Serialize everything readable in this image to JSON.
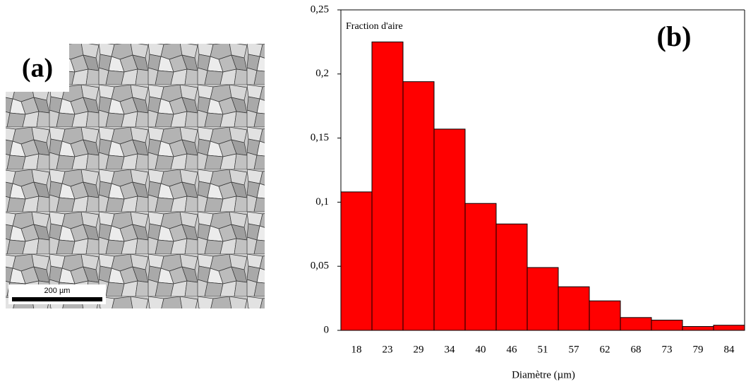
{
  "panel_a": {
    "label": "(a)",
    "scale_bar": "200 µm"
  },
  "chart_data": {
    "type": "bar",
    "panel_label": "(b)",
    "y_label": "Fraction d'aire",
    "x_label": "Diamètre (µm)",
    "categories": [
      "18",
      "23",
      "29",
      "34",
      "40",
      "46",
      "51",
      "57",
      "62",
      "68",
      "73",
      "79",
      "84"
    ],
    "values": [
      0.108,
      0.225,
      0.194,
      0.157,
      0.099,
      0.083,
      0.049,
      0.034,
      0.023,
      0.01,
      0.008,
      0.003,
      0.004
    ],
    "color": "#ff0000",
    "ylim": [
      0,
      0.25
    ],
    "yticks": [
      0,
      {
        "value": 0.05,
        "label": "0,05"
      },
      {
        "value": 0.1,
        "label": "0,1"
      },
      {
        "value": 0.15,
        "label": "0,15"
      },
      {
        "value": 0.2,
        "label": "0,2"
      },
      {
        "value": 0.25,
        "label": "0,25"
      }
    ]
  }
}
